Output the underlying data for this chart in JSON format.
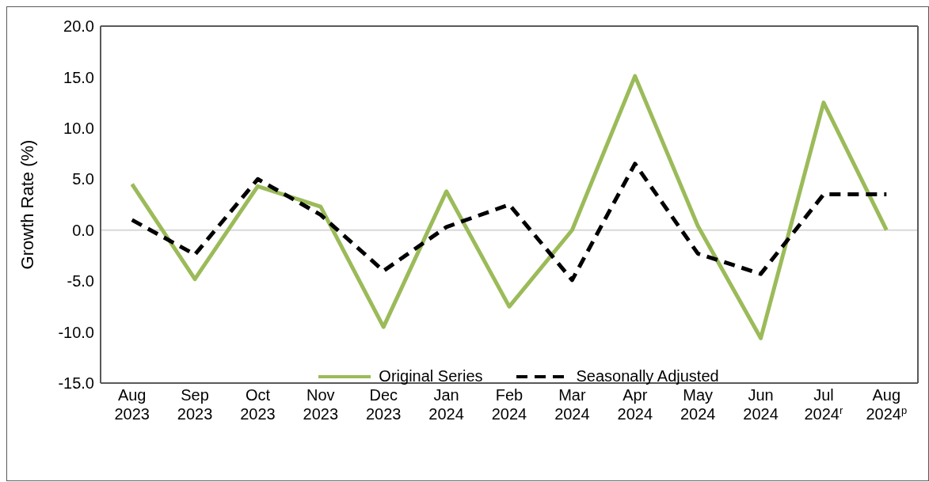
{
  "chart_data": {
    "type": "line",
    "ylabel": "Growth Rate (%)",
    "categories": [
      "Aug\n2023",
      "Sep\n2023",
      "Oct\n2023",
      "Nov\n2023",
      "Dec\n2023",
      "Jan\n2024",
      "Feb\n2024",
      "Mar\n2024",
      "Apr\n2024",
      "May\n2024",
      "Jun\n2024",
      "Jul\n2024$^{r}$",
      "Aug\n2024$^{p}$"
    ],
    "series": [
      {
        "name": "Original Series",
        "color": "#9bbb59",
        "line_style": "solid",
        "values": [
          4.5,
          -4.8,
          4.3,
          2.3,
          -9.5,
          3.8,
          -7.5,
          0.0,
          15.1,
          0.4,
          -10.6,
          12.5,
          0.0
        ]
      },
      {
        "name": "Seasonally Adjusted",
        "color": "#000000",
        "line_style": "dashed",
        "values": [
          1.0,
          -2.4,
          5.0,
          1.5,
          -4.0,
          0.3,
          2.5,
          -4.9,
          6.5,
          -2.3,
          -4.3,
          3.5,
          3.5
        ]
      }
    ],
    "ylim": [
      -15,
      20
    ],
    "yticks": [
      {
        "value": -15,
        "label": "-15.0"
      },
      {
        "value": -10,
        "label": "-10.0"
      },
      {
        "value": -5,
        "label": "-5.0"
      },
      {
        "value": 0,
        "label": "0.0"
      },
      {
        "value": 5,
        "label": "5.0"
      },
      {
        "value": 10,
        "label": "10.0"
      },
      {
        "value": 15,
        "label": "15.0"
      },
      {
        "value": 20,
        "label": "20.0"
      }
    ],
    "ref_lines": [
      {
        "axis": "y",
        "value": 0,
        "color": "#d9d9d9"
      }
    ],
    "grid": false,
    "legend": "bottom",
    "marker": "none"
  }
}
